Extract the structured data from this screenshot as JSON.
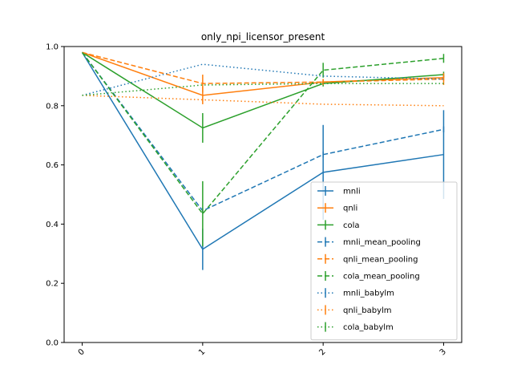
{
  "chart_data": {
    "type": "line",
    "title": "only_npi_licensor_present",
    "xlabel": "",
    "ylabel": "",
    "x": [
      0,
      1,
      2,
      3
    ],
    "x_tick_labels": [
      "0",
      "1",
      "2",
      "3"
    ],
    "xlim": [
      -0.15,
      3.15
    ],
    "ylim": [
      0.0,
      1.0
    ],
    "y_ticks": [
      0.0,
      0.2,
      0.4,
      0.6,
      0.8,
      1.0
    ],
    "y_tick_labels": [
      "0.0",
      "0.2",
      "0.4",
      "0.6",
      "0.8",
      "1.0"
    ],
    "grid": false,
    "legend_position": "lower-right",
    "series": [
      {
        "name": "mnli",
        "color": "#1f77b4",
        "dash": "solid",
        "values": [
          0.98,
          0.315,
          0.575,
          0.635
        ],
        "errors": [
          0.0,
          0.07,
          0.16,
          0.15
        ]
      },
      {
        "name": "qnli",
        "color": "#ff7f0e",
        "dash": "solid",
        "values": [
          0.98,
          0.835,
          0.88,
          0.895
        ],
        "errors": [
          0.0,
          0.03,
          0.01,
          0.01
        ]
      },
      {
        "name": "cola",
        "color": "#2ca02c",
        "dash": "solid",
        "values": [
          0.98,
          0.725,
          0.875,
          0.905
        ],
        "errors": [
          0.0,
          0.05,
          0.01,
          0.01
        ]
      },
      {
        "name": "mnli_mean_pooling",
        "color": "#1f77b4",
        "dash": "dashed",
        "values": [
          0.98,
          0.445,
          0.635,
          0.72
        ],
        "errors": [
          0.0,
          0.01,
          0.01,
          0.01
        ]
      },
      {
        "name": "qnli_mean_pooling",
        "color": "#ff7f0e",
        "dash": "dashed",
        "values": [
          0.98,
          0.875,
          0.88,
          0.89
        ],
        "errors": [
          0.0,
          0.03,
          0.01,
          0.02
        ]
      },
      {
        "name": "cola_mean_pooling",
        "color": "#2ca02c",
        "dash": "dashed",
        "values": [
          0.98,
          0.435,
          0.92,
          0.96
        ],
        "errors": [
          0.0,
          0.11,
          0.025,
          0.015
        ]
      },
      {
        "name": "mnli_babylm",
        "color": "#1f77b4",
        "dash": "dotted",
        "values": [
          0.835,
          0.94,
          0.9,
          0.89
        ],
        "errors": [
          0.0,
          0.0,
          0.0,
          0.0
        ]
      },
      {
        "name": "qnli_babylm",
        "color": "#ff7f0e",
        "dash": "dotted",
        "values": [
          0.835,
          0.82,
          0.805,
          0.8
        ],
        "errors": [
          0.0,
          0.0,
          0.0,
          0.0
        ]
      },
      {
        "name": "cola_babylm",
        "color": "#2ca02c",
        "dash": "dotted",
        "values": [
          0.835,
          0.87,
          0.875,
          0.875
        ],
        "errors": [
          0.0,
          0.0,
          0.0,
          0.0
        ]
      }
    ]
  }
}
